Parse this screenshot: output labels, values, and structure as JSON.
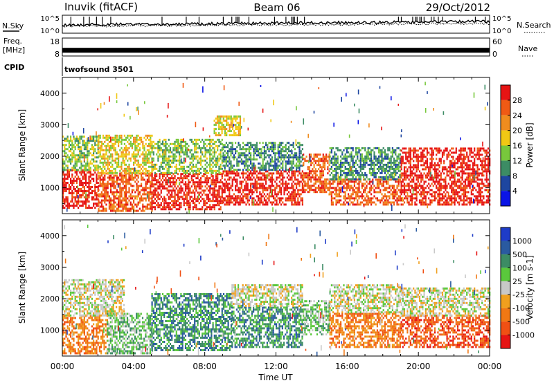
{
  "header": {
    "station": "Inuvik (fitACF)",
    "beam": "Beam 06",
    "date": "29/Oct/2012"
  },
  "top_panels": {
    "nsky_label": "N.Sky",
    "nsky_ticks": [
      "10^5",
      "10^0"
    ],
    "nsearch_label": "N.Search",
    "nsearch_ticks": [
      "10^5",
      "10^0"
    ],
    "freq_label_1": "Freq.",
    "freq_label_2": "[MHz]",
    "freq_ticks": [
      "18",
      "8"
    ],
    "nave_label": "Nave",
    "nave_ticks": [
      "60",
      "0"
    ],
    "cpid_label": "CPID",
    "cpid_value": "twofsound 3501",
    "freq_mhz": 11,
    "nave": 18
  },
  "colors": {
    "power_scale": [
      "#0a14e6",
      "#1e46a0",
      "#3c8c64",
      "#78c83c",
      "#f0c814",
      "#f08c1e",
      "#f05a14",
      "#e61414"
    ],
    "velocity_scale": [
      "#1e3cc8",
      "#2a5aa0",
      "#3c8c64",
      "#5ac83c",
      "#c8c8c8",
      "#f0a01e",
      "#f07814",
      "#f05014",
      "#e61414"
    ]
  },
  "chart_data": [
    {
      "type": "heatmap",
      "panel": "power",
      "xlabel": "",
      "ylabel": "Slant Range [km]",
      "xlim": [
        0,
        24
      ],
      "ylim": [
        180,
        4500
      ],
      "y_ticks": [
        "1000",
        "2000",
        "3000",
        "4000"
      ],
      "colorbar": {
        "label": "Power [dB]",
        "ticks": [
          "4",
          "8",
          "12",
          "16",
          "20",
          "24",
          "28"
        ],
        "range": [
          0,
          32
        ]
      },
      "bands": [
        {
          "t0": 0.0,
          "t1": 2.0,
          "r0": 400,
          "r1": 1600,
          "level": 7
        },
        {
          "t0": 0.0,
          "t1": 2.0,
          "r0": 1600,
          "r1": 2700,
          "level": 3
        },
        {
          "t0": 2.0,
          "t1": 5.0,
          "r0": 300,
          "r1": 1500,
          "level": 6
        },
        {
          "t0": 2.0,
          "t1": 5.0,
          "r0": 1500,
          "r1": 2700,
          "level": 4
        },
        {
          "t0": 5.0,
          "t1": 9.0,
          "r0": 350,
          "r1": 1500,
          "level": 7
        },
        {
          "t0": 5.0,
          "t1": 9.0,
          "r0": 1500,
          "r1": 2600,
          "level": 3
        },
        {
          "t0": 8.5,
          "t1": 10.0,
          "r0": 2700,
          "r1": 3300,
          "level": 4
        },
        {
          "t0": 9.0,
          "t1": 13.5,
          "r0": 500,
          "r1": 1600,
          "level": 7
        },
        {
          "t0": 9.0,
          "t1": 13.5,
          "r0": 1600,
          "r1": 2500,
          "level": 2
        },
        {
          "t0": 13.5,
          "t1": 15.0,
          "r0": 900,
          "r1": 2100,
          "level": 6
        },
        {
          "t0": 15.0,
          "t1": 19.0,
          "r0": 500,
          "r1": 1300,
          "level": 6
        },
        {
          "t0": 15.0,
          "t1": 19.0,
          "r0": 1300,
          "r1": 2300,
          "level": 2
        },
        {
          "t0": 19.0,
          "t1": 24.0,
          "r0": 500,
          "r1": 2300,
          "level": 7
        }
      ]
    },
    {
      "type": "heatmap",
      "panel": "velocity",
      "xlabel": "Time UT",
      "ylabel": "Slant Range [km]",
      "xlim": [
        0,
        24
      ],
      "ylim": [
        180,
        4500
      ],
      "x_ticks": [
        "00:00",
        "04:00",
        "08:00",
        "12:00",
        "16:00",
        "20:00",
        "00:00"
      ],
      "y_ticks": [
        "1000",
        "2000",
        "3000",
        "4000"
      ],
      "colorbar": {
        "label": "Velocity [m s-1]",
        "ticks": [
          "1000",
          "500",
          "100",
          "25",
          "-25",
          "-100",
          "-500",
          "-1000"
        ],
        "range": [
          -1000,
          1000
        ]
      },
      "bands": [
        {
          "t0": 0.0,
          "t1": 2.5,
          "r0": 300,
          "r1": 1500,
          "level": 6
        },
        {
          "t0": 0.0,
          "t1": 3.5,
          "r0": 1500,
          "r1": 2650,
          "level": 4
        },
        {
          "t0": 2.5,
          "t1": 5.0,
          "r0": 300,
          "r1": 1600,
          "level": 3
        },
        {
          "t0": 5.0,
          "t1": 9.5,
          "r0": 400,
          "r1": 2200,
          "level": 2
        },
        {
          "t0": 9.5,
          "t1": 13.5,
          "r0": 500,
          "r1": 1800,
          "level": 2
        },
        {
          "t0": 9.5,
          "t1": 13.5,
          "r0": 1800,
          "r1": 2500,
          "level": 4
        },
        {
          "t0": 13.5,
          "t1": 15.0,
          "r0": 900,
          "r1": 2000,
          "level": 3
        },
        {
          "t0": 15.0,
          "t1": 19.0,
          "r0": 500,
          "r1": 1600,
          "level": 6
        },
        {
          "t0": 15.0,
          "t1": 19.0,
          "r0": 1600,
          "r1": 2500,
          "level": 4
        },
        {
          "t0": 19.0,
          "t1": 24.0,
          "r0": 500,
          "r1": 1500,
          "level": 7
        },
        {
          "t0": 19.0,
          "t1": 24.0,
          "r0": 1500,
          "r1": 2400,
          "level": 4
        }
      ]
    }
  ]
}
